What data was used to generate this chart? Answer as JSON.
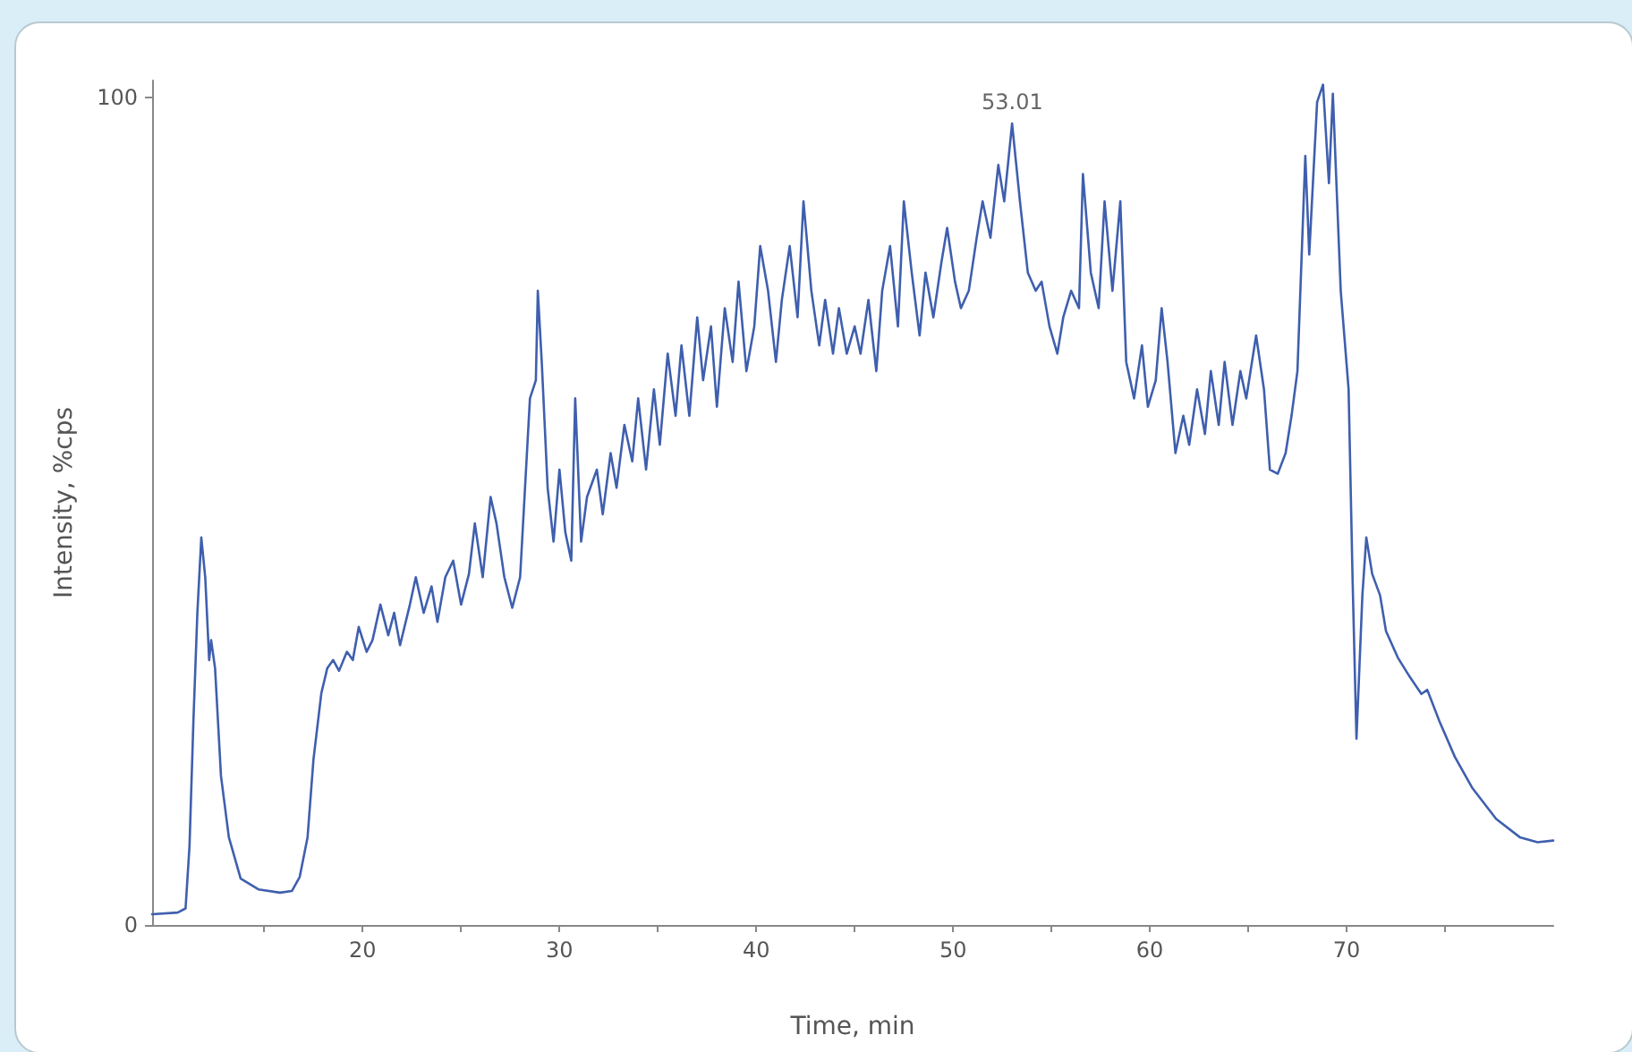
{
  "chart_data": {
    "type": "line",
    "xlabel": "Time, min",
    "ylabel": "Intensity, %cps",
    "xlim": [
      9.3,
      80.5
    ],
    "ylim": [
      0,
      102
    ],
    "xticks": [
      {
        "value": 15,
        "label": null
      },
      20,
      {
        "value": 25,
        "label": null
      },
      30,
      {
        "value": 35,
        "label": null
      },
      40,
      {
        "value": 45,
        "label": null
      },
      50,
      {
        "value": 55,
        "label": null
      },
      60,
      {
        "value": 65,
        "label": null
      },
      70,
      {
        "value": 75,
        "label": null
      }
    ],
    "yticks": [
      0,
      100
    ],
    "marker": "none",
    "line_style": "solid",
    "annotations": [
      {
        "text": "53.01",
        "x": 53.01,
        "y": 96.8
      }
    ],
    "series": [
      {
        "color": "#3f5fae",
        "x": [
          9.3,
          10.6,
          11.0,
          11.2,
          11.4,
          11.6,
          11.8,
          12.0,
          12.2,
          12.3,
          12.5,
          12.8,
          13.2,
          13.8,
          14.7,
          15.8,
          16.4,
          16.8,
          17.2,
          17.5,
          17.9,
          18.2,
          18.5,
          18.8,
          19.2,
          19.5,
          19.8,
          20.2,
          20.5,
          20.9,
          21.3,
          21.6,
          21.9,
          22.4,
          22.7,
          23.1,
          23.5,
          23.8,
          24.2,
          24.6,
          25.0,
          25.4,
          25.7,
          26.1,
          26.5,
          26.8,
          27.2,
          27.6,
          28.0,
          28.5,
          28.8,
          28.9,
          29.1,
          29.4,
          29.7,
          30.0,
          30.3,
          30.6,
          30.8,
          31.1,
          31.4,
          31.9,
          32.2,
          32.6,
          32.9,
          33.3,
          33.7,
          34.0,
          34.4,
          34.8,
          35.1,
          35.5,
          35.9,
          36.2,
          36.6,
          37.0,
          37.3,
          37.7,
          38.0,
          38.4,
          38.8,
          39.1,
          39.5,
          39.9,
          40.2,
          40.6,
          41.0,
          41.3,
          41.7,
          42.1,
          42.4,
          42.8,
          43.2,
          43.5,
          43.9,
          44.2,
          44.6,
          45.0,
          45.3,
          45.7,
          46.1,
          46.4,
          46.8,
          47.2,
          47.5,
          47.9,
          48.3,
          48.6,
          49.0,
          49.4,
          49.7,
          50.1,
          50.4,
          50.8,
          51.2,
          51.5,
          51.9,
          52.3,
          52.6,
          53.0,
          53.4,
          53.8,
          54.2,
          54.5,
          54.9,
          55.3,
          55.6,
          56.0,
          56.4,
          56.6,
          57.0,
          57.4,
          57.7,
          58.1,
          58.5,
          58.8,
          59.2,
          59.6,
          59.9,
          60.3,
          60.6,
          60.9,
          61.3,
          61.7,
          62.0,
          62.4,
          62.8,
          63.1,
          63.5,
          63.8,
          64.2,
          64.6,
          64.9,
          65.4,
          65.8,
          66.1,
          66.5,
          66.9,
          67.2,
          67.5,
          67.9,
          68.1,
          68.5,
          68.8,
          69.1,
          69.3,
          69.7,
          70.1,
          70.3,
          70.5,
          70.8,
          71.0,
          71.3,
          71.7,
          72.0,
          72.6,
          73.2,
          73.8,
          74.1,
          74.7,
          75.5,
          76.4,
          77.6,
          78.8,
          79.7,
          80.5
        ],
        "values": [
          1.3,
          1.5,
          2,
          9.5,
          24.7,
          37.7,
          46.8,
          42,
          32,
          34.4,
          31,
          18,
          10.6,
          5.6,
          4.3,
          3.9,
          4.1,
          5.8,
          10.6,
          20,
          28,
          31,
          32,
          30.7,
          33,
          32,
          36,
          33,
          34.4,
          38.7,
          35,
          37.7,
          33.8,
          38.7,
          42,
          37.7,
          40.9,
          36.6,
          42,
          44,
          38.7,
          42.4,
          48.5,
          42,
          51.7,
          48.5,
          42,
          38.3,
          42,
          63.6,
          65.8,
          76.6,
          68,
          52.8,
          46.3,
          55,
          47.4,
          44,
          63.6,
          46.3,
          51.7,
          55,
          49.6,
          57,
          52.8,
          60.4,
          56,
          63.6,
          55,
          64.7,
          58,
          69,
          61.5,
          70,
          61.5,
          73.4,
          65.8,
          72.3,
          62.6,
          74.5,
          68,
          77.7,
          66.9,
          72.3,
          82,
          76.6,
          68,
          75.5,
          82,
          73.4,
          87.4,
          76.6,
          70,
          75.5,
          69,
          74.5,
          69,
          72.3,
          69,
          75.5,
          66.9,
          76.6,
          82,
          72.3,
          87.4,
          78.8,
          71.2,
          78.8,
          73.4,
          79.9,
          84.2,
          77.7,
          74.5,
          76.6,
          83,
          87.4,
          83,
          91.8,
          87.4,
          96.8,
          87.4,
          78.8,
          76.6,
          77.7,
          72.3,
          69,
          73.4,
          76.6,
          74.5,
          90.7,
          78.8,
          74.5,
          87.4,
          76.6,
          87.4,
          68,
          63.6,
          70,
          62.6,
          65.8,
          74.5,
          68,
          57,
          61.5,
          58,
          64.7,
          59.3,
          66.9,
          60.4,
          68,
          60.4,
          66.9,
          63.6,
          71.2,
          64.7,
          55,
          54.5,
          57,
          61.5,
          66.9,
          92.9,
          81,
          99.4,
          101.5,
          89.6,
          100.4,
          76.6,
          64.7,
          42,
          22.5,
          39.8,
          46.8,
          42.4,
          39.8,
          35.5,
          32.3,
          30,
          27.9,
          28.4,
          24.7,
          20.3,
          16.5,
          12.8,
          10.6,
          10,
          10.2
        ]
      }
    ]
  }
}
